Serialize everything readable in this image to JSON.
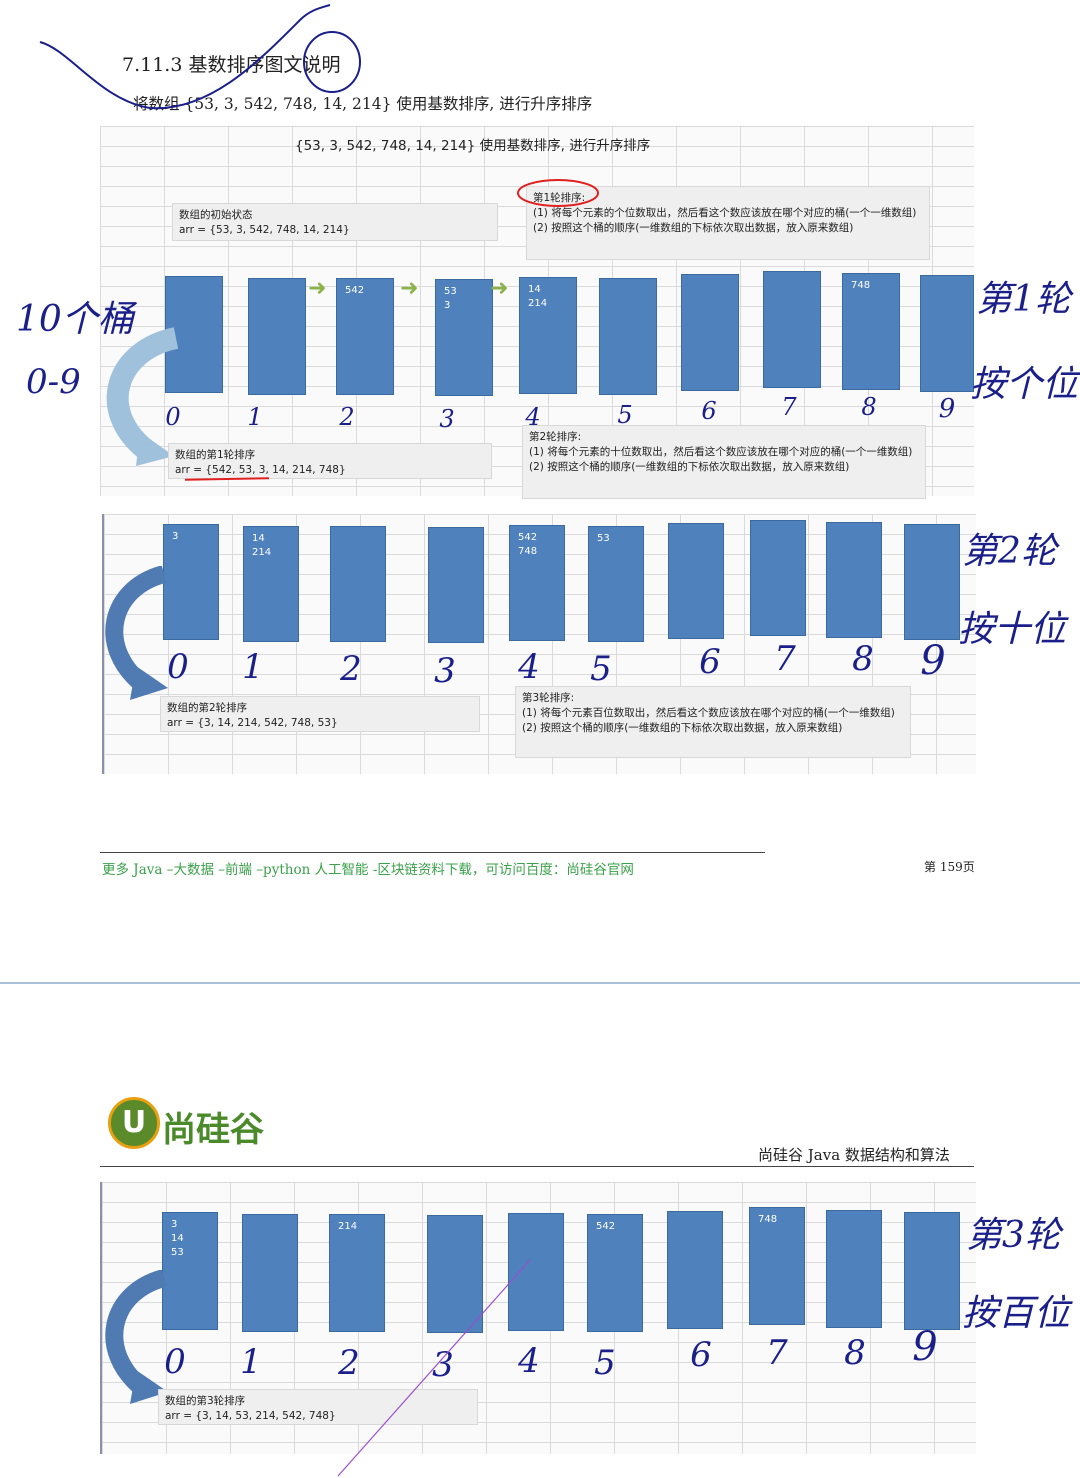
{
  "header": {
    "section_title": "7.11.3   基数排序图文说明",
    "intro": "将数组 {53, 3, 542, 748, 14, 214} 使用基数排序, 进行升序排序"
  },
  "figure1": {
    "title": "{53, 3, 542, 748, 14, 214} 使用基数排序, 进行升序排序",
    "init_title": "数组的初始状态",
    "init_arr": "arr = {53, 3, 542, 748, 14, 214}",
    "round1_title": "第1轮排序:",
    "round1_line1": "(1) 将每个元素的个位数取出，然后看这个数应该放在哪个对应的桶(一个一维数组)",
    "round1_line2": "(2) 按照这个桶的顺序(一维数组的下标依次取出数据，放入原来数组)",
    "buckets": [
      "",
      "",
      "542",
      "53\n3",
      "14\n214",
      "",
      "",
      "",
      "748",
      ""
    ],
    "indices": [
      "0",
      "1",
      "2",
      "3",
      "4",
      "5",
      "6",
      "7",
      "8",
      "9"
    ],
    "result_title": "数组的第1轮排序",
    "result_arr": "arr = {542, 53, 3, 14, 214, 748}",
    "round2_title": "第2轮排序:",
    "round2_line1": "(1) 将每个元素的十位数取出，然后看这个数应该放在哪个对应的桶(一个一维数组)",
    "round2_line2": "(2) 按照这个桶的顺序(一维数组的下标依次取出数据，放入原来数组)"
  },
  "figure2": {
    "buckets": [
      "3",
      "14\n214",
      "",
      "",
      "542\n748",
      "53",
      "",
      "",
      "",
      ""
    ],
    "indices": [
      "0",
      "1",
      "2",
      "3",
      "4",
      "5",
      "6",
      "7",
      "8",
      "9"
    ],
    "result_title": "数组的第2轮排序",
    "result_arr": "arr = {3, 14, 214, 542, 748, 53}",
    "round3_title": "第3轮排序:",
    "round3_line1": "(1) 将每个元素百位数取出，然后看这个数应该放在哪个对应的桶(一个一维数组)",
    "round3_line2": "(2) 按照这个桶的顺序(一维数组的下标依次取出数据，放入原来数组)"
  },
  "figure3": {
    "buckets": [
      "3\n14\n53",
      "",
      "214",
      "",
      "",
      "542",
      "",
      "748",
      "",
      ""
    ],
    "indices": [
      "0",
      "1",
      "2",
      "3",
      "4",
      "5",
      "6",
      "7",
      "8",
      "9"
    ],
    "result_title": "数组的第3轮排序",
    "result_arr": "arr = {3, 14, 53, 214, 542, 748}"
  },
  "footer": {
    "text": "更多 Java –大数据 –前端 –python 人工智能 -区块链资料下载，可访问百度：尚硅谷官网",
    "page": "第 159页"
  },
  "page2_header": {
    "logo_text": "尚硅谷",
    "logo_letter": "U",
    "subtitle": "尚硅谷 Java 数据结构和算法"
  },
  "handwriting": {
    "buckets_note": "10个桶",
    "range_note": "0-9",
    "round1_note_a": "第1轮",
    "round1_note_b": "按个位",
    "round2_note_a": "第2轮",
    "round2_note_b": "按十位",
    "round3_note_a": "第3轮",
    "round3_note_b": "按百位",
    "digits": [
      "0",
      "1",
      "2",
      "3",
      "4",
      "5",
      "6",
      "7",
      "8",
      "9"
    ]
  },
  "colors": {
    "bucket": "#4f81bd",
    "ink": "#1a1f8a",
    "footer_green": "#3aa14a",
    "arrow_green": "#8bb24b",
    "red_mark": "#e02020"
  }
}
